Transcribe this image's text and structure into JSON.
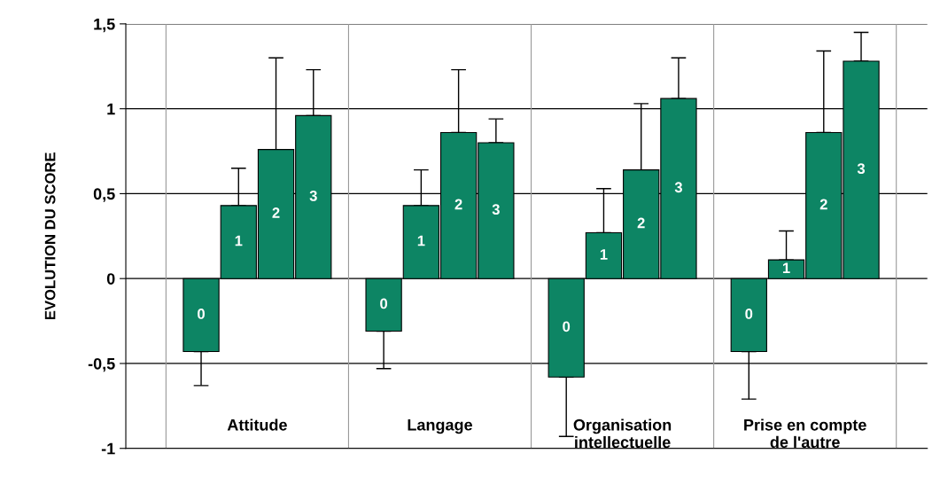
{
  "chart_data": {
    "type": "bar",
    "ylabel": "EVOLUTION DU SCORE",
    "categories": [
      "Attitude",
      "Langage",
      "Organisation\nintellectuelle",
      "Prise en compte\nde l'autre"
    ],
    "series": [
      {
        "name": "0",
        "color": "#0d8564",
        "values": [
          -0.43,
          -0.31,
          -0.58,
          -0.43
        ],
        "errors": [
          [
            -0.63,
            -0.43
          ],
          [
            -0.53,
            -0.31
          ],
          [
            -0.93,
            -0.58
          ],
          [
            -0.71,
            -0.43
          ]
        ]
      },
      {
        "name": "1",
        "color": "#0d8564",
        "values": [
          0.43,
          0.43,
          0.27,
          0.11
        ],
        "errors": [
          [
            0.43,
            0.65
          ],
          [
            0.43,
            0.64
          ],
          [
            0.27,
            0.53
          ],
          [
            0.11,
            0.28
          ]
        ]
      },
      {
        "name": "2",
        "color": "#0d8564",
        "values": [
          0.76,
          0.86,
          0.64,
          0.86
        ],
        "errors": [
          [
            0.76,
            1.3
          ],
          [
            0.86,
            1.23
          ],
          [
            0.64,
            1.03
          ],
          [
            0.86,
            1.34
          ]
        ]
      },
      {
        "name": "3",
        "color": "#0d8564",
        "values": [
          0.96,
          0.8,
          1.06,
          1.28
        ],
        "errors": [
          [
            0.96,
            1.23
          ],
          [
            0.8,
            0.94
          ],
          [
            1.06,
            1.3
          ],
          [
            1.28,
            1.45
          ]
        ]
      }
    ],
    "ylim": [
      -1,
      1.5
    ],
    "yticks": [
      {
        "value": -1,
        "label": "-1"
      },
      {
        "value": -0.5,
        "label": "-0,5"
      },
      {
        "value": 0,
        "label": "0"
      },
      {
        "value": 0.5,
        "label": "0,5"
      },
      {
        "value": 1,
        "label": "1"
      },
      {
        "value": 1.5,
        "label": "1,5"
      }
    ],
    "grid": true
  }
}
